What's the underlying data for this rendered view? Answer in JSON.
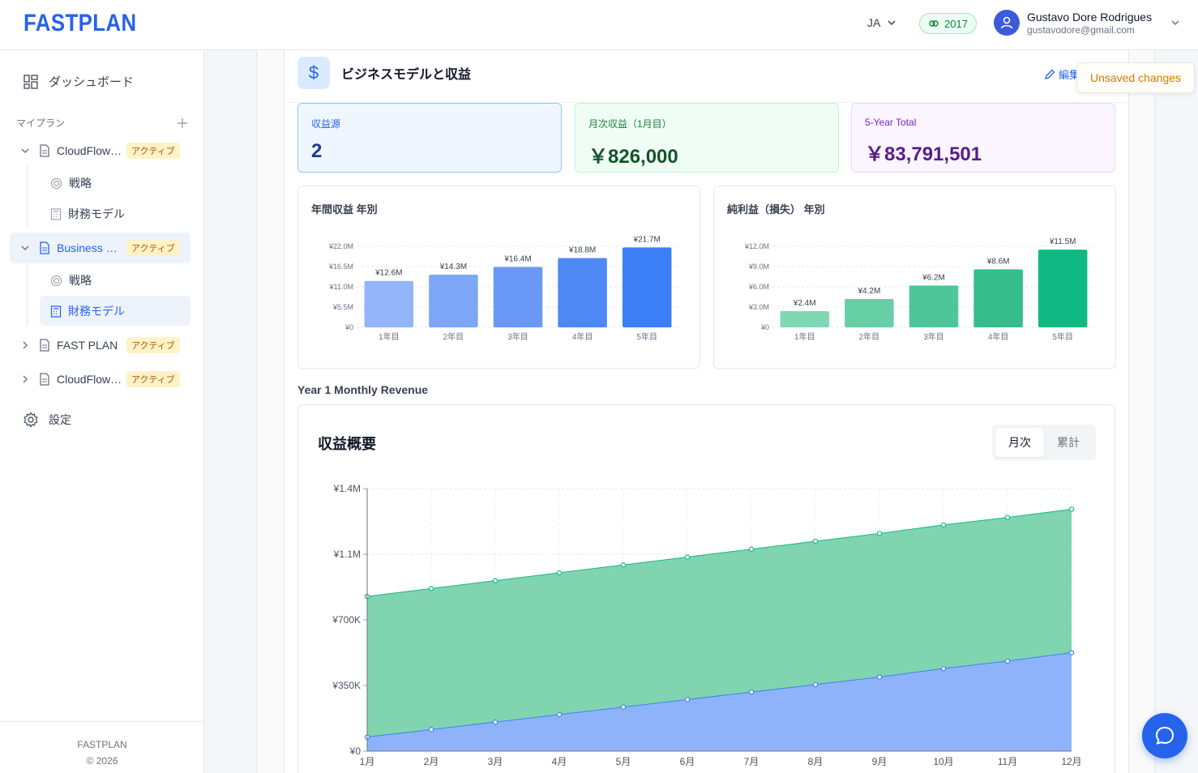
{
  "header": {
    "logo": "FASTPLAN",
    "language": "JA",
    "year_badge": "2017",
    "user_name": "Gustavo Dore Rodrigues",
    "user_email": "gustavodore@gmail.com"
  },
  "sidebar": {
    "dashboard": "ダッシュボード",
    "section_label": "マイプラン",
    "plans": [
      {
        "name": "CloudFlow…",
        "badge": "アクティブ",
        "expanded": true,
        "children": [
          "戦略",
          "財務モデル"
        ]
      },
      {
        "name": "Business …",
        "badge": "アクティブ",
        "expanded": true,
        "children": [
          "戦略",
          "財務モデル"
        ]
      },
      {
        "name": "FAST PLAN",
        "badge": "アクティブ",
        "expanded": false
      },
      {
        "name": "CloudFlow…",
        "badge": "アクティブ",
        "expanded": false
      }
    ],
    "settings": "設定",
    "footer_brand": "FASTPLAN",
    "footer_copy": "© 2026"
  },
  "section": {
    "title": "ビジネスモデルと収益",
    "edit_label": "編集",
    "unsaved": "Unsaved changes"
  },
  "kpis": [
    {
      "label": "収益源",
      "value": "2"
    },
    {
      "label": "月次収益（1月目）",
      "value": "￥826,000"
    },
    {
      "label": "5-Year Total",
      "value": "￥83,791,501"
    }
  ],
  "year1_title": "Year 1 Monthly Revenue",
  "revenue_overview": {
    "title": "収益概要",
    "toggle": [
      "月次",
      "累計"
    ],
    "active_toggle": "月次"
  },
  "colors": {
    "primary": "#2563eb",
    "revenue_bars": [
      "#93b4f8",
      "#7ea6f7",
      "#6a98f6",
      "#4f87f5",
      "#3b7ef6"
    ],
    "profit_bars": [
      "#7fd8b3",
      "#66cfa6",
      "#4ec699",
      "#36bd8c",
      "#10b981"
    ],
    "area_top": "#80d5b0",
    "area_bottom": "#8fb3fa"
  },
  "chart_data": [
    {
      "type": "bar",
      "title": "年間収益 年別",
      "categories": [
        "1年目",
        "2年目",
        "3年目",
        "4年目",
        "5年目"
      ],
      "values": [
        12.6,
        14.3,
        16.4,
        18.8,
        21.7
      ],
      "data_labels": [
        "¥12.6M",
        "¥14.3M",
        "¥16.4M",
        "¥18.8M",
        "¥21.7M"
      ],
      "yticks": [
        "¥0",
        "¥5.5M",
        "¥11.0M",
        "¥16.5M",
        "¥22.0M"
      ],
      "ylim": [
        0,
        22
      ],
      "grid": true
    },
    {
      "type": "bar",
      "title": "純利益（損失） 年別",
      "categories": [
        "1年目",
        "2年目",
        "3年目",
        "4年目",
        "5年目"
      ],
      "values": [
        2.4,
        4.2,
        6.2,
        8.6,
        11.5
      ],
      "data_labels": [
        "¥2.4M",
        "¥4.2M",
        "¥6.2M",
        "¥8.6M",
        "¥11.5M"
      ],
      "yticks": [
        "¥0",
        "¥3.0M",
        "¥6.0M",
        "¥9.0M",
        "¥12.0M"
      ],
      "ylim": [
        0,
        12
      ],
      "grid": true
    },
    {
      "type": "area",
      "title": "収益概要",
      "categories": [
        "1月",
        "2月",
        "3月",
        "4月",
        "5月",
        "6月",
        "7月",
        "8月",
        "9月",
        "10月",
        "11月",
        "12月"
      ],
      "yticks": [
        "¥0",
        "¥350K",
        "¥700K",
        "¥1.1M",
        "¥1.4M"
      ],
      "ylim": [
        0,
        1400000
      ],
      "stacked": true,
      "grid": true,
      "series": [
        {
          "values": [
            75000,
            115000,
            155000,
            195000,
            235000,
            275000,
            315000,
            355000,
            395000,
            440000,
            480000,
            525000
          ]
        },
        {
          "values": [
            750000,
            752000,
            754000,
            756000,
            758000,
            760000,
            762000,
            764000,
            766000,
            766000,
            766000,
            765000
          ]
        }
      ]
    }
  ]
}
